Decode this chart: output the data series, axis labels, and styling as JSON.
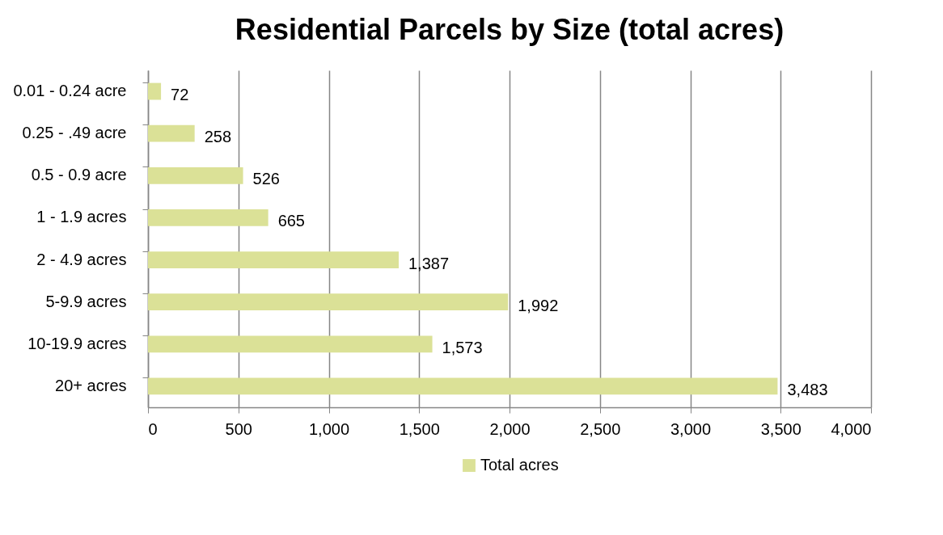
{
  "chart_data": {
    "type": "bar",
    "orientation": "horizontal",
    "title": "Residential Parcels by Size (total acres)",
    "categories": [
      "0.01 - 0.24 acre",
      "0.25 - .49 acre",
      "0.5 - 0.9 acre",
      "1 - 1.9 acres",
      "2 - 4.9 acres",
      "5-9.9 acres",
      "10-19.9 acres",
      "20+ acres"
    ],
    "series": [
      {
        "name": "Total acres",
        "color": "#dbe197",
        "values": [
          72,
          258,
          526,
          665,
          1387,
          1992,
          1573,
          3483
        ],
        "value_labels": [
          "72",
          "258",
          "526",
          "665",
          "1,387",
          "1,992",
          "1,573",
          "3,483"
        ]
      }
    ],
    "xlim": [
      0,
      4000
    ],
    "xticks": [
      0,
      500,
      {
        "value": 1000,
        "label": "1,000"
      },
      {
        "value": 1500,
        "label": "1,500"
      },
      {
        "value": 2000,
        "label": "2,000"
      },
      {
        "value": 2500,
        "label": "2,500"
      },
      {
        "value": 3000,
        "label": "3,000"
      },
      {
        "value": 3500,
        "label": "3,500"
      },
      {
        "value": 4000,
        "label": "4,000"
      }
    ],
    "grid": "x",
    "legend": "bottom"
  }
}
